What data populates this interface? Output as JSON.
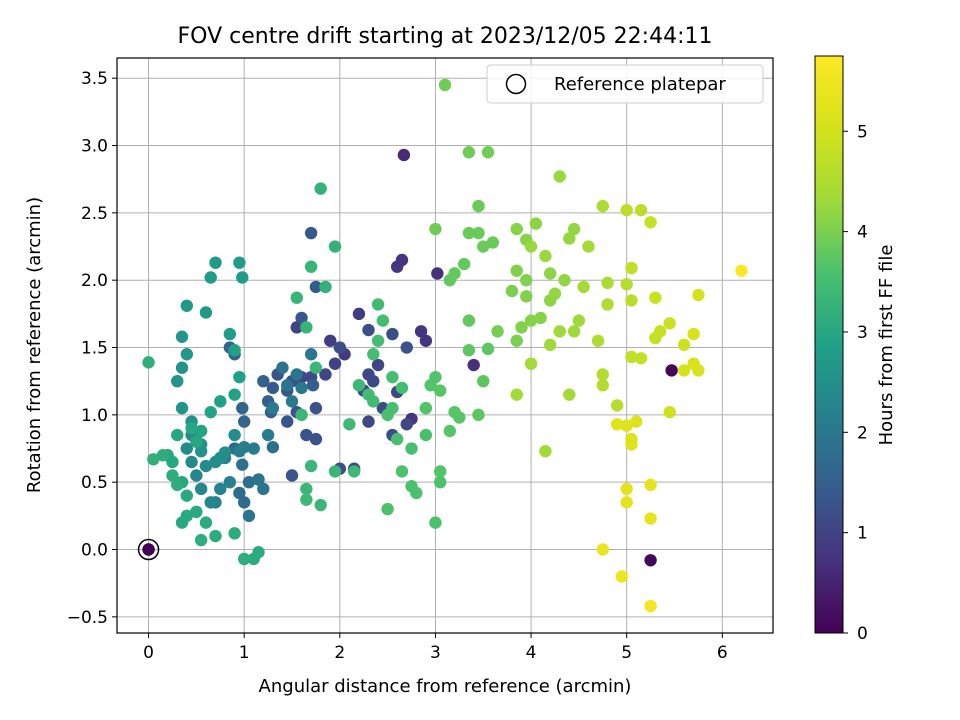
{
  "chart_data": {
    "type": "scatter",
    "title": "FOV centre drift starting at 2023/12/05 22:44:11",
    "xlabel": "Angular distance from reference (arcmin)",
    "ylabel": "Rotation from reference (arcmin)",
    "xlim": [
      -0.33,
      6.53
    ],
    "ylim": [
      -0.62,
      3.65
    ],
    "xticks": [
      "0",
      "1",
      "2",
      "3",
      "4",
      "5",
      "6"
    ],
    "yticks": [
      "−0.5",
      "0.0",
      "0.5",
      "1.0",
      "1.5",
      "2.0",
      "2.5",
      "3.0",
      "3.5"
    ],
    "grid": true,
    "legend": {
      "position": "upper right",
      "entries": [
        "Reference platepar"
      ]
    },
    "colorbar": {
      "label": "Hours from first FF file",
      "ticks": [
        "0",
        "1",
        "2",
        "3",
        "4",
        "5"
      ],
      "range": [
        0,
        5.75
      ],
      "colormap": "viridis"
    },
    "reference_point": {
      "x": 0.0,
      "y": 0.0,
      "c": 0.0
    },
    "points": [
      [
        0.0,
        0.0,
        0.02
      ],
      [
        5.47,
        1.33,
        0.05
      ],
      [
        5.25,
        -0.08,
        0.1
      ],
      [
        2.67,
        2.93,
        0.6
      ],
      [
        3.02,
        2.05,
        0.7
      ],
      [
        2.85,
        1.62,
        0.75
      ],
      [
        2.75,
        0.97,
        0.8
      ],
      [
        3.4,
        1.37,
        0.7
      ],
      [
        2.65,
        2.15,
        0.75
      ],
      [
        2.6,
        2.1,
        0.8
      ],
      [
        2.9,
        1.55,
        0.8
      ],
      [
        2.05,
        1.45,
        0.85
      ],
      [
        2.2,
        1.75,
        0.9
      ],
      [
        1.9,
        1.55,
        0.9
      ],
      [
        1.95,
        1.38,
        1.0
      ],
      [
        1.55,
        1.65,
        1.0
      ],
      [
        1.6,
        1.28,
        1.05
      ],
      [
        1.85,
        1.3,
        1.05
      ],
      [
        2.3,
        1.3,
        1.1
      ],
      [
        2.4,
        1.37,
        1.05
      ],
      [
        2.35,
        1.25,
        1.1
      ],
      [
        2.25,
        1.18,
        1.1
      ],
      [
        2.45,
        1.05,
        1.15
      ],
      [
        2.3,
        0.95,
        1.1
      ],
      [
        2.6,
        1.17,
        1.05
      ],
      [
        2.7,
        0.93,
        1.1
      ],
      [
        2.55,
        0.85,
        1.2
      ],
      [
        2.15,
        0.6,
        1.15
      ],
      [
        2.0,
        0.6,
        1.2
      ],
      [
        1.75,
        0.82,
        1.25
      ],
      [
        1.65,
        0.85,
        1.3
      ],
      [
        1.5,
        0.55,
        1.3
      ],
      [
        1.45,
        0.95,
        1.3
      ],
      [
        1.35,
        1.3,
        1.3
      ],
      [
        2.55,
        1.6,
        1.2
      ],
      [
        2.7,
        1.5,
        1.25
      ],
      [
        2.3,
        1.63,
        1.2
      ],
      [
        2.0,
        1.5,
        1.2
      ],
      [
        1.7,
        1.28,
        1.15
      ],
      [
        1.5,
        1.25,
        1.2
      ],
      [
        1.75,
        1.05,
        1.25
      ],
      [
        1.55,
        1.02,
        1.3
      ],
      [
        1.45,
        1.18,
        1.35
      ],
      [
        1.3,
        1.2,
        1.4
      ],
      [
        1.6,
        1.72,
        1.35
      ],
      [
        1.75,
        1.95,
        1.4
      ],
      [
        1.7,
        2.35,
        1.4
      ],
      [
        1.72,
        1.22,
        1.45
      ],
      [
        1.25,
        1.1,
        1.5
      ],
      [
        1.28,
        1.02,
        1.5
      ],
      [
        1.2,
        1.25,
        1.55
      ],
      [
        1.0,
        0.95,
        1.6
      ],
      [
        0.98,
        1.05,
        1.6
      ],
      [
        0.9,
        1.45,
        1.65
      ],
      [
        0.85,
        1.5,
        1.65
      ],
      [
        0.9,
        0.75,
        1.7
      ],
      [
        0.95,
        0.42,
        1.75
      ],
      [
        1.0,
        0.35,
        1.75
      ],
      [
        1.05,
        0.5,
        1.8
      ],
      [
        0.98,
        0.63,
        1.85
      ],
      [
        1.3,
        0.76,
        1.85
      ],
      [
        1.2,
        0.45,
        1.9
      ],
      [
        1.15,
        0.52,
        1.9
      ],
      [
        1.05,
        0.25,
        1.9
      ],
      [
        1.4,
        1.35,
        1.9
      ],
      [
        1.45,
        1.22,
        1.95
      ],
      [
        1.55,
        1.3,
        1.95
      ],
      [
        1.7,
        1.45,
        2.0
      ],
      [
        1.6,
        1.2,
        2.0
      ],
      [
        1.5,
        1.1,
        2.05
      ],
      [
        1.3,
        1.05,
        2.05
      ],
      [
        1.25,
        0.85,
        2.1
      ],
      [
        1.1,
        0.75,
        2.1
      ],
      [
        1.0,
        0.76,
        2.1
      ],
      [
        0.95,
        0.73,
        2.15
      ],
      [
        0.8,
        0.68,
        2.2
      ],
      [
        0.85,
        0.5,
        2.2
      ],
      [
        0.75,
        0.45,
        2.2
      ],
      [
        0.7,
        0.35,
        2.25
      ],
      [
        0.65,
        0.35,
        2.3
      ],
      [
        0.55,
        0.45,
        2.3
      ],
      [
        0.5,
        0.55,
        2.3
      ],
      [
        0.45,
        0.65,
        2.35
      ],
      [
        0.4,
        0.75,
        2.4
      ],
      [
        0.45,
        0.85,
        2.4
      ],
      [
        0.5,
        0.85,
        2.45
      ],
      [
        0.55,
        0.78,
        2.45
      ],
      [
        0.6,
        0.62,
        2.4
      ],
      [
        0.7,
        0.65,
        2.45
      ],
      [
        0.75,
        0.68,
        2.5
      ],
      [
        0.8,
        0.72,
        2.5
      ],
      [
        0.9,
        0.85,
        2.5
      ],
      [
        0.55,
        0.73,
        2.55
      ],
      [
        0.45,
        0.95,
        2.55
      ],
      [
        0.35,
        1.05,
        2.6
      ],
      [
        0.3,
        1.25,
        2.6
      ],
      [
        0.35,
        1.35,
        2.6
      ],
      [
        0.4,
        1.45,
        2.65
      ],
      [
        0.35,
        1.58,
        2.65
      ],
      [
        0.4,
        1.81,
        2.7
      ],
      [
        0.6,
        1.76,
        2.7
      ],
      [
        0.65,
        2.02,
        2.75
      ],
      [
        0.7,
        2.13,
        2.75
      ],
      [
        0.95,
        2.13,
        2.8
      ],
      [
        0.98,
        2.02,
        2.8
      ],
      [
        0.85,
        1.6,
        2.8
      ],
      [
        0.9,
        1.48,
        2.85
      ],
      [
        0.95,
        1.28,
        2.85
      ],
      [
        0.9,
        1.15,
        2.9
      ],
      [
        0.75,
        1.1,
        2.9
      ],
      [
        0.65,
        1.02,
        2.95
      ],
      [
        0.55,
        0.88,
        2.95
      ],
      [
        0.5,
        0.8,
        3.0
      ],
      [
        0.45,
        0.9,
        3.0
      ],
      [
        0.3,
        0.85,
        3.0
      ],
      [
        0.25,
        0.65,
        3.0
      ],
      [
        0.2,
        0.7,
        3.0
      ],
      [
        0.35,
        0.5,
        3.0
      ],
      [
        0.4,
        0.4,
        3.05
      ],
      [
        0.5,
        0.28,
        3.05
      ],
      [
        0.4,
        0.25,
        3.05
      ],
      [
        0.35,
        0.2,
        3.05
      ],
      [
        0.6,
        0.2,
        3.1
      ],
      [
        0.7,
        0.1,
        3.1
      ],
      [
        0.9,
        0.12,
        3.1
      ],
      [
        1.1,
        -0.07,
        3.1
      ],
      [
        1.15,
        -0.02,
        3.1
      ],
      [
        1.0,
        -0.07,
        3.15
      ],
      [
        0.55,
        0.07,
        3.15
      ],
      [
        0.3,
        0.48,
        3.15
      ],
      [
        0.25,
        0.55,
        3.15
      ],
      [
        0.15,
        0.7,
        3.15
      ],
      [
        0.0,
        1.39,
        3.15
      ],
      [
        0.05,
        0.67,
        3.2
      ],
      [
        1.85,
        1.95,
        3.2
      ],
      [
        1.95,
        2.25,
        3.25
      ],
      [
        1.8,
        2.68,
        3.25
      ],
      [
        1.7,
        2.1,
        3.3
      ],
      [
        1.55,
        1.87,
        3.3
      ],
      [
        1.65,
        1.65,
        3.3
      ],
      [
        1.75,
        1.35,
        3.35
      ],
      [
        1.6,
        1.0,
        3.35
      ],
      [
        1.7,
        0.62,
        3.35
      ],
      [
        1.65,
        0.45,
        3.35
      ],
      [
        1.8,
        0.33,
        3.35
      ],
      [
        1.95,
        0.58,
        3.35
      ],
      [
        1.65,
        0.37,
        3.4
      ],
      [
        2.15,
        0.58,
        3.4
      ],
      [
        2.1,
        0.93,
        3.4
      ],
      [
        2.2,
        1.22,
        3.4
      ],
      [
        2.3,
        1.15,
        3.45
      ],
      [
        2.35,
        1.1,
        3.45
      ],
      [
        2.4,
        1.82,
        3.45
      ],
      [
        2.45,
        1.7,
        3.5
      ],
      [
        2.4,
        1.55,
        3.5
      ],
      [
        2.35,
        1.45,
        3.5
      ],
      [
        2.55,
        1.28,
        3.5
      ],
      [
        2.65,
        1.2,
        3.5
      ],
      [
        2.55,
        1.05,
        3.55
      ],
      [
        2.5,
        1.0,
        3.55
      ],
      [
        2.6,
        0.82,
        3.55
      ],
      [
        2.75,
        0.75,
        3.55
      ],
      [
        2.9,
        0.85,
        3.55
      ],
      [
        2.65,
        0.58,
        3.6
      ],
      [
        2.8,
        0.42,
        3.6
      ],
      [
        2.75,
        0.47,
        3.6
      ],
      [
        2.5,
        0.3,
        3.6
      ],
      [
        3.0,
        0.2,
        3.6
      ],
      [
        3.05,
        0.5,
        3.6
      ],
      [
        3.05,
        0.58,
        3.65
      ],
      [
        3.0,
        1.28,
        3.65
      ],
      [
        2.95,
        1.22,
        3.65
      ],
      [
        2.9,
        1.05,
        3.65
      ],
      [
        3.05,
        1.18,
        3.7
      ],
      [
        3.15,
        0.88,
        3.7
      ],
      [
        3.2,
        1.02,
        3.7
      ],
      [
        3.25,
        0.98,
        3.7
      ],
      [
        3.35,
        1.48,
        3.75
      ],
      [
        3.5,
        1.25,
        3.75
      ],
      [
        3.45,
        1.0,
        3.75
      ],
      [
        3.55,
        1.49,
        3.75
      ],
      [
        3.35,
        1.7,
        3.8
      ],
      [
        3.15,
        2.0,
        3.8
      ],
      [
        3.2,
        2.05,
        3.8
      ],
      [
        3.3,
        2.12,
        3.8
      ],
      [
        3.35,
        2.35,
        3.85
      ],
      [
        3.45,
        2.35,
        3.85
      ],
      [
        3.5,
        2.25,
        3.85
      ],
      [
        3.6,
        2.28,
        3.85
      ],
      [
        3.45,
        2.55,
        3.85
      ],
      [
        3.55,
        2.95,
        3.9
      ],
      [
        3.35,
        2.95,
        3.9
      ],
      [
        3.1,
        3.45,
        3.9
      ],
      [
        3.0,
        2.38,
        3.9
      ],
      [
        3.65,
        1.62,
        3.95
      ],
      [
        3.85,
        1.55,
        4.0
      ],
      [
        3.8,
        1.92,
        4.0
      ],
      [
        3.9,
        1.65,
        4.05
      ],
      [
        3.95,
        1.88,
        4.05
      ],
      [
        3.85,
        2.07,
        4.05
      ],
      [
        3.95,
        2.0,
        4.05
      ],
      [
        4.0,
        1.7,
        4.1
      ],
      [
        4.1,
        1.72,
        4.1
      ],
      [
        3.95,
        2.3,
        4.1
      ],
      [
        3.85,
        2.38,
        4.1
      ],
      [
        4.05,
        2.42,
        4.15
      ],
      [
        4.2,
        2.05,
        4.15
      ],
      [
        4.2,
        1.85,
        4.15
      ],
      [
        4.25,
        1.9,
        4.2
      ],
      [
        4.35,
        2.0,
        4.2
      ],
      [
        4.4,
        2.31,
        4.2
      ],
      [
        4.45,
        2.38,
        4.2
      ],
      [
        4.3,
        2.77,
        4.25
      ],
      [
        4.0,
        2.25,
        4.25
      ],
      [
        4.15,
        2.18,
        4.25
      ],
      [
        4.3,
        1.62,
        4.3
      ],
      [
        4.2,
        1.52,
        4.3
      ],
      [
        4.45,
        1.62,
        4.3
      ],
      [
        4.5,
        1.7,
        4.3
      ],
      [
        4.4,
        1.15,
        4.35
      ],
      [
        4.15,
        0.73,
        4.35
      ],
      [
        3.85,
        1.15,
        4.35
      ],
      [
        4.0,
        1.38,
        4.35
      ],
      [
        4.55,
        1.95,
        4.4
      ],
      [
        4.6,
        2.25,
        4.4
      ],
      [
        4.75,
        2.55,
        4.45
      ],
      [
        4.8,
        1.98,
        4.45
      ],
      [
        4.8,
        1.82,
        4.5
      ],
      [
        4.7,
        1.55,
        4.5
      ],
      [
        4.75,
        1.3,
        4.55
      ],
      [
        4.75,
        1.22,
        4.55
      ],
      [
        4.9,
        1.07,
        4.6
      ],
      [
        5.0,
        1.97,
        4.6
      ],
      [
        5.05,
        1.85,
        4.65
      ],
      [
        5.0,
        2.52,
        4.7
      ],
      [
        5.15,
        2.52,
        4.7
      ],
      [
        5.05,
        2.09,
        4.75
      ],
      [
        5.05,
        1.43,
        4.75
      ],
      [
        5.15,
        1.42,
        4.8
      ],
      [
        5.3,
        1.57,
        4.8
      ],
      [
        5.35,
        1.62,
        4.85
      ],
      [
        5.25,
        2.43,
        4.85
      ],
      [
        5.3,
        1.87,
        4.9
      ],
      [
        5.45,
        1.68,
        4.9
      ],
      [
        5.45,
        1.02,
        4.95
      ],
      [
        5.6,
        1.52,
        4.95
      ],
      [
        5.75,
        1.89,
        5.0
      ],
      [
        5.6,
        1.33,
        5.05
      ],
      [
        5.7,
        1.38,
        5.05
      ],
      [
        5.75,
        1.33,
        5.1
      ],
      [
        5.7,
        1.6,
        5.1
      ],
      [
        5.1,
        0.95,
        5.15
      ],
      [
        5.05,
        0.82,
        5.15
      ],
      [
        5.0,
        0.92,
        5.2
      ],
      [
        5.05,
        0.78,
        5.2
      ],
      [
        4.9,
        0.93,
        5.25
      ],
      [
        5.0,
        0.45,
        5.3
      ],
      [
        5.0,
        0.35,
        5.3
      ],
      [
        5.25,
        0.48,
        5.35
      ],
      [
        5.25,
        0.23,
        5.35
      ],
      [
        4.75,
        0.0,
        5.4
      ],
      [
        4.95,
        -0.2,
        5.45
      ],
      [
        5.25,
        -0.42,
        5.6
      ],
      [
        6.2,
        2.07,
        5.75
      ]
    ]
  }
}
